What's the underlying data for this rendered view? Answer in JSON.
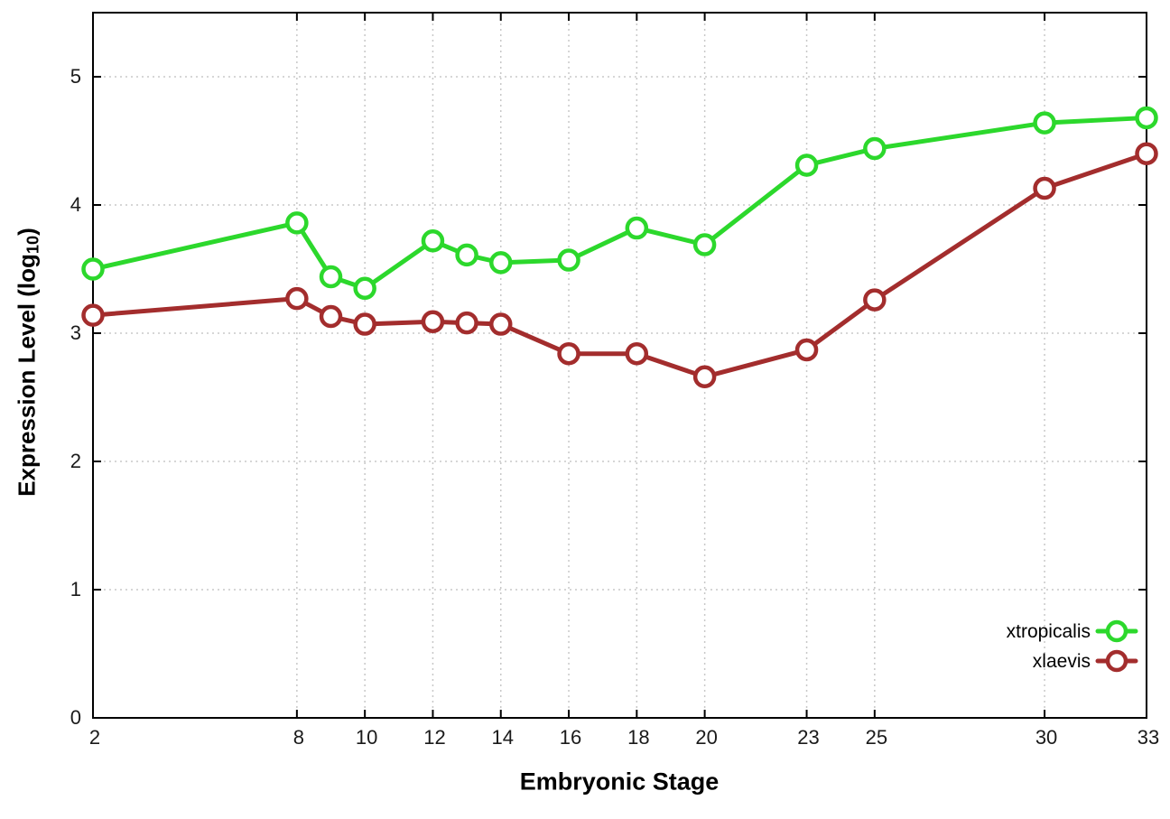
{
  "chart_data": {
    "type": "line",
    "title": "",
    "xlabel": "Embryonic Stage",
    "ylabel_pre": "Expression Level (log",
    "ylabel_sub": "10",
    "ylabel_post": ")",
    "xlim": [
      2,
      33
    ],
    "ylim": [
      0,
      5.5
    ],
    "x_ticks": [
      2,
      8,
      10,
      12,
      14,
      16,
      18,
      20,
      23,
      25,
      30,
      33
    ],
    "y_ticks": [
      0,
      1,
      2,
      3,
      4,
      5
    ],
    "grid": true,
    "legend_position": "inside-bottom-right",
    "marker": "open-circle",
    "x": [
      2,
      8,
      9,
      10,
      12,
      13,
      14,
      16,
      18,
      20,
      23,
      25,
      30,
      33
    ],
    "series": [
      {
        "name": "xtropicalis",
        "color": "#2CD82C",
        "values": [
          3.5,
          3.86,
          3.44,
          3.35,
          3.72,
          3.61,
          3.55,
          3.57,
          3.82,
          3.69,
          4.31,
          4.44,
          4.64,
          4.68
        ]
      },
      {
        "name": "xlaevis",
        "color": "#A32D2D",
        "values": [
          3.14,
          3.27,
          3.13,
          3.07,
          3.09,
          3.08,
          3.07,
          2.84,
          2.84,
          2.66,
          2.87,
          3.26,
          4.13,
          4.4
        ]
      }
    ],
    "style": {
      "grid_color": "#c8c8c8",
      "axis_color": "#000000",
      "tick_label_color": "#1a1a1a",
      "background": "#ffffff"
    }
  }
}
